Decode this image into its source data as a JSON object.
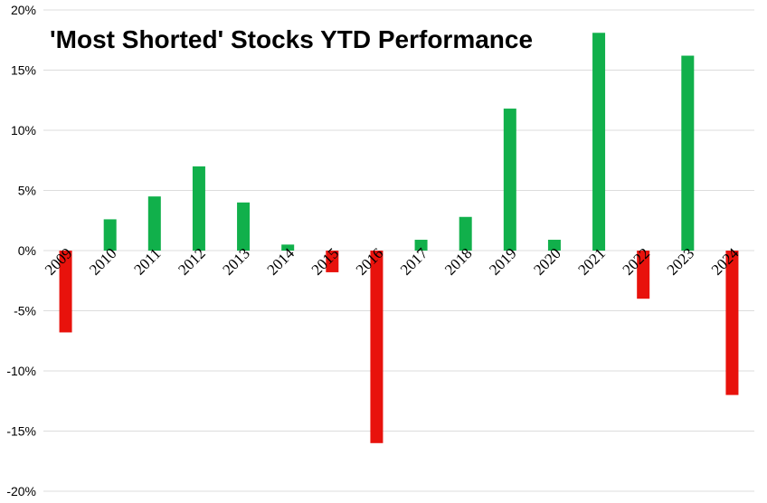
{
  "chart_data": {
    "type": "bar",
    "title": "'Most Shorted' Stocks YTD Performance",
    "xlabel": "",
    "ylabel": "",
    "categories": [
      "2009",
      "2010",
      "2011",
      "2012",
      "2013",
      "2014",
      "2015",
      "2016",
      "2017",
      "2018",
      "2019",
      "2020",
      "2021",
      "2022",
      "2023",
      "2024"
    ],
    "values": [
      -6.8,
      2.6,
      4.5,
      7.0,
      4.0,
      0.5,
      -1.8,
      -16.0,
      0.9,
      2.8,
      11.8,
      0.9,
      18.1,
      -4.0,
      16.2,
      -12.0
    ],
    "ylim": [
      -20,
      20
    ],
    "yticks": [
      -20,
      -15,
      -10,
      -5,
      0,
      5,
      10,
      15,
      20
    ],
    "ytick_labels": [
      "-20%",
      "-15%",
      "-10%",
      "-5%",
      "0%",
      "5%",
      "10%",
      "15%",
      "20%"
    ],
    "grid": true,
    "legend": "none",
    "colors": {
      "positive": "#11b04b",
      "negative": "#e8120c",
      "grid": "#dcdcdc"
    }
  }
}
